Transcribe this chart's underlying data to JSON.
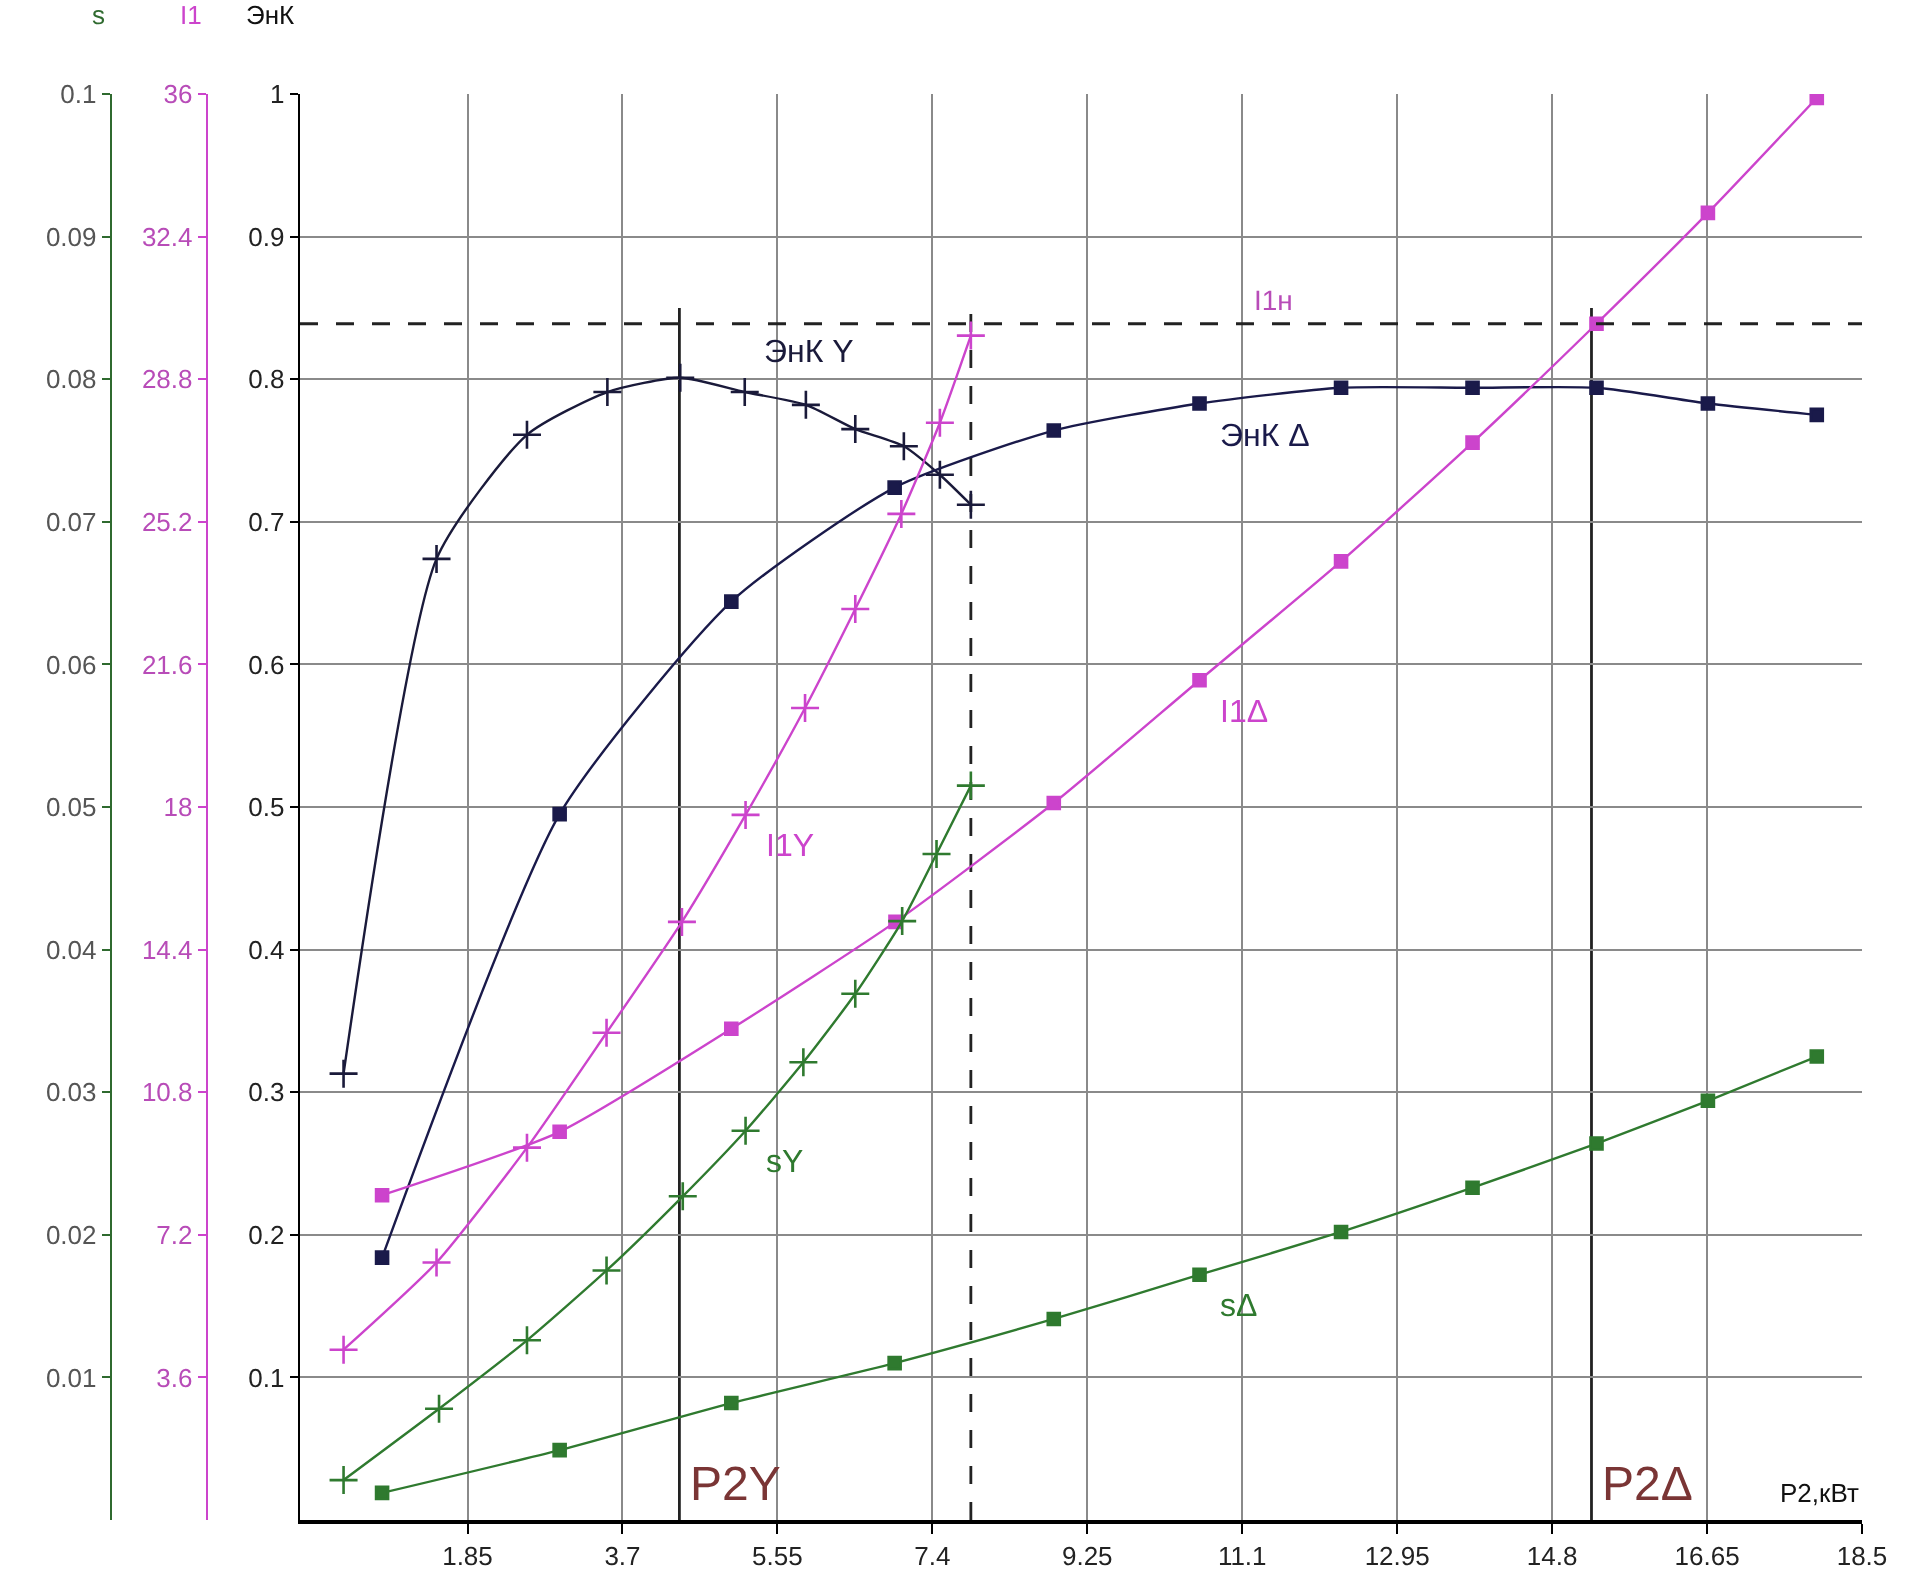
{
  "chart_data": {
    "type": "line",
    "xlabel": "P2,кВт",
    "ylabel": "ЭнК",
    "y2label": "I1",
    "y3label": "s",
    "xlim": [
      -0.15,
      18.5
    ],
    "xticks": [
      1.85,
      3.7,
      5.55,
      7.4,
      9.25,
      11.1,
      12.95,
      14.8,
      16.65,
      18.5
    ],
    "ylim": [
      0,
      1
    ],
    "yticks": [
      0.1,
      0.2,
      0.3,
      0.4,
      0.5,
      0.6,
      0.7,
      0.8,
      0.9,
      1
    ],
    "y2lim": [
      0,
      36
    ],
    "y2ticks": [
      3.6,
      7.2,
      10.8,
      14.4,
      18,
      21.6,
      25.2,
      28.8,
      32.4,
      36
    ],
    "y3lim": [
      0,
      0.1
    ],
    "y3ticks": [
      0.01,
      0.02,
      0.03,
      0.04,
      0.05,
      0.06,
      0.07,
      0.08,
      0.09,
      0.1
    ],
    "grid": true,
    "legend": false,
    "series": [
      {
        "name": "ЭнК Y",
        "marker": "cross",
        "color": "#1a1a3a",
        "x": [
          0.37,
          1.48,
          2.56,
          3.52,
          4.39,
          5.16,
          5.89,
          6.48,
          7.06,
          7.49,
          7.86
        ],
        "values": [
          0.313,
          0.674,
          0.761,
          0.791,
          0.801,
          0.791,
          0.782,
          0.765,
          0.753,
          0.733,
          0.712
        ]
      },
      {
        "name": "ЭнК Δ",
        "marker": "square",
        "color": "#1a1a4a",
        "x": [
          0.83,
          2.95,
          5.0,
          6.95,
          8.85,
          10.59,
          12.28,
          13.85,
          15.33,
          16.66,
          17.96
        ],
        "values": [
          0.184,
          0.495,
          0.644,
          0.724,
          0.764,
          0.783,
          0.794,
          0.794,
          0.794,
          0.783,
          0.775
        ]
      },
      {
        "name": "I1Y",
        "marker": "cross",
        "color": "#cc44cc",
        "axis": "y2",
        "x": [
          0.37,
          1.48,
          2.56,
          3.51,
          4.41,
          5.17,
          5.88,
          6.48,
          7.03,
          7.49,
          7.86
        ],
        "values": [
          4.3,
          6.5,
          9.4,
          12.3,
          15.1,
          17.8,
          20.5,
          23.0,
          25.4,
          27.7,
          29.9
        ]
      },
      {
        "name": "I1Δ",
        "marker": "square",
        "color": "#cc44cc",
        "axis": "y2",
        "x": [
          0.83,
          2.95,
          5.0,
          6.96,
          8.85,
          10.59,
          12.28,
          13.85,
          15.33,
          16.66,
          17.96
        ],
        "values": [
          8.2,
          9.8,
          12.4,
          15.1,
          18.1,
          21.2,
          24.2,
          27.2,
          30.2,
          33.0,
          35.9
        ]
      },
      {
        "name": "sY",
        "marker": "cross",
        "color": "#2f7a2f",
        "axis": "y3",
        "x": [
          0.37,
          1.51,
          2.56,
          3.51,
          4.42,
          5.17,
          5.86,
          6.48,
          7.04,
          7.45,
          7.86
        ],
        "values": [
          0.0028,
          0.0078,
          0.0126,
          0.0175,
          0.0227,
          0.0273,
          0.0321,
          0.0369,
          0.042,
          0.0467,
          0.0515
        ]
      },
      {
        "name": "sΔ",
        "marker": "square",
        "color": "#2f7a2f",
        "axis": "y3",
        "x": [
          0.83,
          2.95,
          5.0,
          6.95,
          8.85,
          10.59,
          12.28,
          13.85,
          15.33,
          16.66,
          17.96
        ],
        "values": [
          0.0019,
          0.0049,
          0.0082,
          0.011,
          0.0141,
          0.0172,
          0.0202,
          0.0233,
          0.0264,
          0.0294,
          0.0325
        ]
      }
    ],
    "ref_lines": [
      {
        "axis": "x",
        "value": 4.38,
        "label": "P2Y",
        "line_style": "solid"
      },
      {
        "axis": "x",
        "value": 7.86,
        "line_style": "dashed"
      },
      {
        "axis": "x",
        "value": 15.27,
        "label": "P2Δ",
        "line_style": "solid"
      },
      {
        "axis": "y2",
        "value": 30.2,
        "label": "I1н",
        "line_style": "dashed"
      }
    ]
  }
}
